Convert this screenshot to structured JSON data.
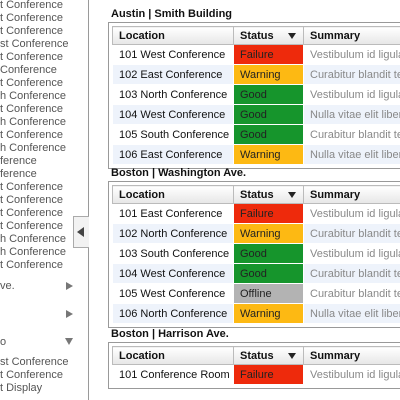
{
  "sidebar": {
    "items": [
      {
        "label": "t Conference"
      },
      {
        "label": "t Conference"
      },
      {
        "label": "t Conference"
      },
      {
        "label": "st Conference"
      },
      {
        "label": "t Conference"
      },
      {
        "label": "Conference"
      },
      {
        "label": "t Conference"
      },
      {
        "label": "h Conference"
      },
      {
        "label": "t Conference"
      },
      {
        "label": "h Conference"
      },
      {
        "label": "t Conference"
      },
      {
        "label": "h Conference"
      },
      {
        "label": "ference"
      },
      {
        "label": "ference"
      },
      {
        "label": "t Conference"
      },
      {
        "label": "t Conference"
      },
      {
        "label": "t Conference"
      },
      {
        "label": "t Conference"
      },
      {
        "label": "h Conference"
      },
      {
        "label": "h Conference"
      },
      {
        "label": "t Conference"
      },
      {
        "label": "ve.",
        "arrow": "right"
      },
      {
        "label": "",
        "arrow": "right"
      },
      {
        "label": "o",
        "arrow": "down"
      },
      {
        "label": "st Conference"
      },
      {
        "label": "t Conference"
      },
      {
        "label": "t Display"
      }
    ]
  },
  "sections": [
    {
      "title": "Austin | Smith Building",
      "columns": [
        "Location",
        "Status",
        "Summary"
      ],
      "rows": [
        [
          "101 West Conference",
          "Failure",
          "Vestibulum id ligula"
        ],
        [
          "102 East Conference",
          "Warning",
          "Curabitur blandit tem"
        ],
        [
          "103 North Conference",
          "Good",
          "Vestibulum id ligula"
        ],
        [
          "104 West Conference",
          "Good",
          "Nulla vitae elit libero"
        ],
        [
          "105 South Conference",
          "Good",
          "Curabitur blandit tem"
        ],
        [
          "106 East Conference",
          "Warning",
          "Nulla vitae elit libero"
        ]
      ]
    },
    {
      "title": "Boston | Washington Ave.",
      "columns": [
        "Location",
        "Status",
        "Summary"
      ],
      "rows": [
        [
          "101 East Conference",
          "Failure",
          "Vestibulum id ligula"
        ],
        [
          "102 North Conference",
          "Warning",
          "Curabitur blandit tem"
        ],
        [
          "103 South Conference",
          "Good",
          "Vestibulum id ligula"
        ],
        [
          "104 West Conference",
          "Good",
          "Curabitur blandit tem"
        ],
        [
          "105 West Conference",
          "Offline",
          "Curabitur blandit tem"
        ],
        [
          "106 North Conference",
          "Warning",
          "Nulla vitae elit libero"
        ]
      ]
    },
    {
      "title": "Boston | Harrison Ave.",
      "columns": [
        "Location",
        "Status",
        "Summary"
      ],
      "rows": [
        [
          "101 Conference Room",
          "Failure",
          "Vestibulum id ligula"
        ]
      ]
    }
  ],
  "status_colors": {
    "Failure": "#ee2a0c",
    "Warning": "#fdb913",
    "Good": "#16952c",
    "Offline": "#b3b3b3"
  }
}
